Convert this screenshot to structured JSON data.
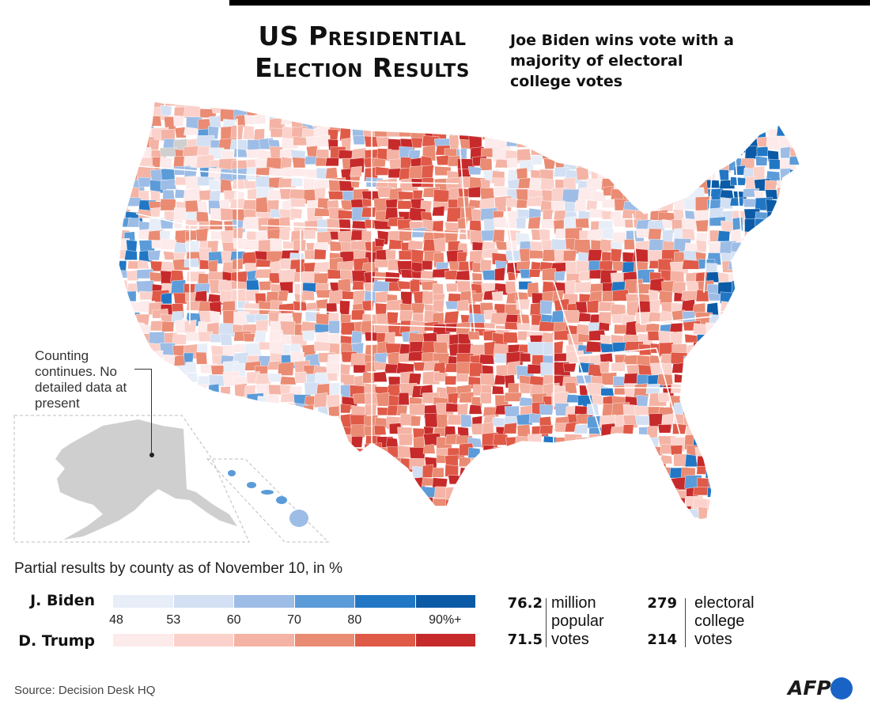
{
  "header": {
    "title_line1": "US Presidential",
    "title_line2": "Election Results",
    "subtitle": "Joe Biden wins vote with a majority of electoral college votes"
  },
  "map": {
    "alaska_note": "Counting continues. No detailed data at present",
    "colors": {
      "no_data": "#cfcfcf",
      "state_outline": "#ffffff",
      "inset_border": "#bdbdbd"
    }
  },
  "legend": {
    "title": "Partial results by county as of November 10, in %",
    "biden_label": "J. Biden",
    "trump_label": "D. Trump",
    "thresholds": [
      "48",
      "53",
      "60",
      "70",
      "80",
      "90%+"
    ],
    "biden_colors": [
      "#e8eef8",
      "#d3e0f3",
      "#9dbde6",
      "#5b9bd8",
      "#2277c4",
      "#0b5aa6"
    ],
    "trump_colors": [
      "#fdeaea",
      "#fbd2cb",
      "#f4b3a4",
      "#ea8b73",
      "#e05a48",
      "#c72a2a"
    ]
  },
  "totals": {
    "biden_popular": "76.2",
    "trump_popular": "71.5",
    "popular_unit": [
      "million",
      "popular",
      "votes"
    ],
    "biden_electoral": "279",
    "trump_electoral": "214",
    "electoral_unit": [
      "electoral",
      "college",
      "votes"
    ]
  },
  "footer": {
    "source": "Source: Decision Desk HQ",
    "logo_text": "AFP"
  }
}
